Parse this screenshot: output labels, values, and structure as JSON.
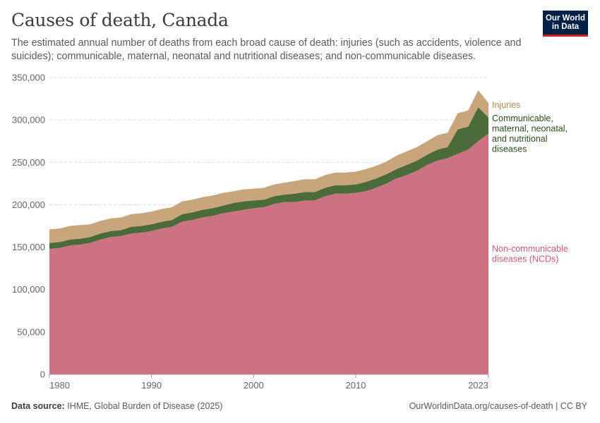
{
  "header": {
    "title": "Causes of death, Canada",
    "subtitle": "The estimated annual number of deaths from each broad cause of death: injuries (such as accidents, violence and suicides); communicable, maternal, neonatal and nutritional diseases; and non-communicable diseases.",
    "logo_line1": "Our World",
    "logo_line2": "in Data"
  },
  "footer": {
    "source_label": "Data source:",
    "source_text": "IHME, Global Burden of Disease (2025)",
    "url": "OurWorldinData.org/causes-of-death | CC BY"
  },
  "colors": {
    "ncd": "#cd7283",
    "communicable": "#4b6b3a",
    "injuries": "#c9a57b",
    "ncd_label": "#cd5a72",
    "communicable_label": "#2c4d1c",
    "injuries_label": "#b08a58",
    "grid": "#dddddd"
  },
  "chart_data": {
    "type": "area",
    "stacked": true,
    "x": [
      1980,
      1981,
      1982,
      1983,
      1984,
      1985,
      1986,
      1987,
      1988,
      1989,
      1990,
      1991,
      1992,
      1993,
      1994,
      1995,
      1996,
      1997,
      1998,
      1999,
      2000,
      2001,
      2002,
      2003,
      2004,
      2005,
      2006,
      2007,
      2008,
      2009,
      2010,
      2011,
      2012,
      2013,
      2014,
      2015,
      2016,
      2017,
      2018,
      2019,
      2020,
      2021,
      2022,
      2023
    ],
    "series": [
      {
        "name": "Non-communicable diseases (NCDs)",
        "values": [
          148000,
          149000,
          152000,
          153000,
          155000,
          159000,
          162000,
          163000,
          166000,
          167000,
          169000,
          172000,
          174000,
          180000,
          182000,
          185000,
          187000,
          190000,
          192000,
          194000,
          196000,
          197000,
          201000,
          203000,
          203000,
          205000,
          205000,
          210000,
          213000,
          213000,
          214000,
          216000,
          220000,
          225000,
          231000,
          235000,
          240000,
          247000,
          252000,
          255000,
          260000,
          265000,
          275000,
          284000
        ]
      },
      {
        "name": "Communicable, maternal, neonatal, and nutritional diseases",
        "values": [
          7000,
          7000,
          7000,
          7000,
          7000,
          7000,
          7000,
          7000,
          8000,
          8000,
          8000,
          8000,
          8000,
          9000,
          9000,
          9000,
          9000,
          9000,
          10000,
          10000,
          9000,
          9000,
          9000,
          9000,
          10000,
          10000,
          10000,
          10000,
          10000,
          10000,
          10000,
          11000,
          11000,
          11000,
          11000,
          12000,
          12000,
          12000,
          13000,
          13000,
          29000,
          27000,
          40000,
          19000
        ]
      },
      {
        "name": "Injuries",
        "values": [
          16000,
          16000,
          16000,
          16000,
          15000,
          15000,
          15000,
          15000,
          15000,
          15000,
          15000,
          15000,
          15000,
          15000,
          15000,
          15000,
          15000,
          15000,
          14000,
          14000,
          14000,
          14000,
          14000,
          14000,
          15000,
          15000,
          15000,
          15000,
          15000,
          15000,
          15000,
          15000,
          15000,
          15000,
          16000,
          16000,
          16000,
          16000,
          17000,
          17000,
          19000,
          19000,
          20000,
          17000
        ]
      }
    ],
    "ylim": [
      0,
      350000
    ],
    "yticks": [
      "0",
      "50,000",
      "100,000",
      "150,000",
      "200,000",
      "250,000",
      "300,000",
      "350,000"
    ],
    "xticks": [
      "1980",
      "1990",
      "2000",
      "2010",
      "2023"
    ],
    "legend_labels": {
      "injuries": "Injuries",
      "communicable": [
        "Communicable,",
        "maternal, neonatal,",
        "and nutritional",
        "diseases"
      ],
      "ncd": [
        "Non-communicable",
        "diseases (NCDs)"
      ]
    },
    "grid": true,
    "legend_placement": "right, inline at series end"
  }
}
